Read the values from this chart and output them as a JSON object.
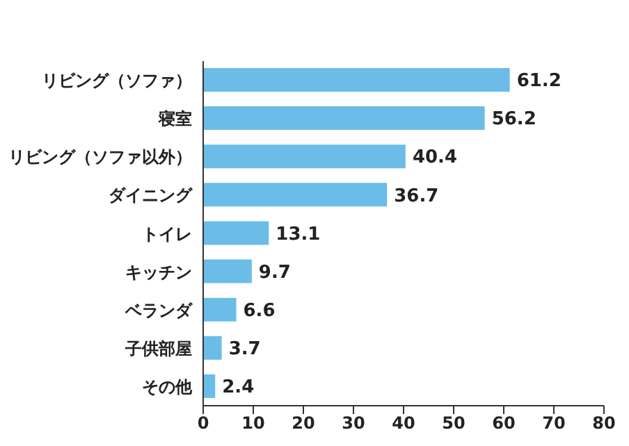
{
  "chart_data": {
    "type": "bar",
    "orientation": "horizontal",
    "categories": [
      "リビング（ソファ）",
      "寝室",
      "リビング（ソファ以外）",
      "ダイニング",
      "トイレ",
      "キッチン",
      "ベランダ",
      "子供部屋",
      "その他"
    ],
    "values": [
      61.2,
      56.2,
      40.4,
      36.7,
      13.1,
      9.7,
      6.6,
      3.7,
      2.4
    ],
    "color": "#6bbde8",
    "xlim": [
      0,
      80
    ],
    "xticks": [
      0,
      10,
      20,
      30,
      40,
      50,
      60,
      70,
      80
    ],
    "data_labels": true,
    "grid": false,
    "legend": false
  }
}
